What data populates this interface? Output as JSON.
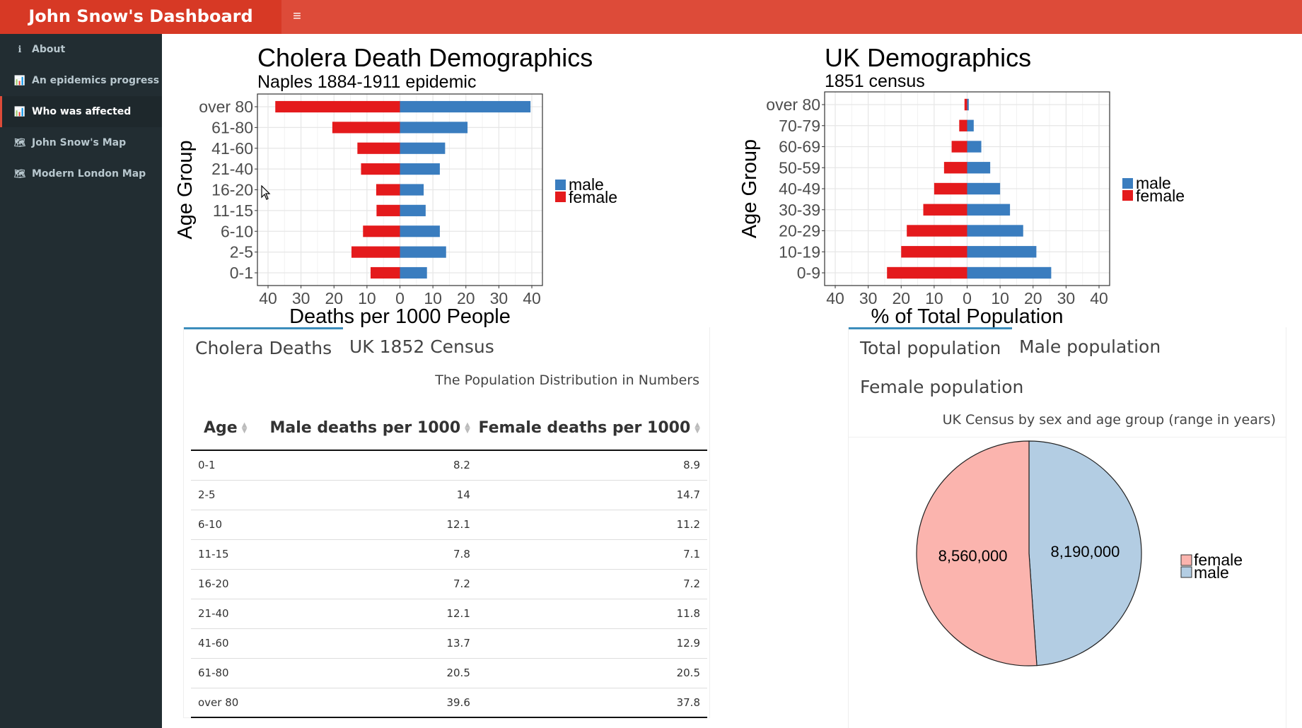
{
  "header": {
    "title": "John Snow's Dashboard",
    "menu_icon": "hamburger-icon"
  },
  "sidebar": {
    "items": [
      {
        "label": "About",
        "icon": "info-icon",
        "glyph": "ℹ",
        "active": false
      },
      {
        "label": "An epidemics progress",
        "icon": "bar-chart-icon",
        "glyph": "📊",
        "active": false
      },
      {
        "label": "Who was affected",
        "icon": "bar-chart-icon",
        "glyph": "📊",
        "active": true
      },
      {
        "label": "John Snow's Map",
        "icon": "map-icon",
        "glyph": "🗺",
        "active": false
      },
      {
        "label": "Modern London Map",
        "icon": "map-icon",
        "glyph": "🗺",
        "active": false
      }
    ]
  },
  "colors": {
    "male": "#3a7dbf",
    "female": "#e41a1c",
    "pie_female": "#fbb4ae",
    "pie_male": "#b3cde3",
    "accent": "#dd4b39",
    "tab_accent": "#3c8dbc"
  },
  "charts": {
    "cholera": {
      "title": "Cholera Death Demographics",
      "subtitle": "Naples 1884-1911 epidemic",
      "xlabel": "Deaths per 1000 People",
      "ylabel": "Age Group",
      "legend": [
        "male",
        "female"
      ],
      "x_ticks": [
        "40",
        "30",
        "20",
        "10",
        "0",
        "10",
        "20",
        "30",
        "40"
      ]
    },
    "uk": {
      "title": "UK Demographics",
      "subtitle": "1851 census",
      "xlabel": "% of Total Population",
      "ylabel": "Age Group",
      "legend": [
        "male",
        "female"
      ],
      "x_ticks": [
        "40",
        "30",
        "20",
        "10",
        "0",
        "10",
        "20",
        "30",
        "40"
      ]
    },
    "pie": {
      "legend": [
        "female",
        "male"
      ],
      "labels": [
        "8,560,000",
        "8,190,000"
      ]
    }
  },
  "chart_data": [
    {
      "type": "bar",
      "orientation": "horizontal",
      "title": "Cholera Death Demographics",
      "subtitle": "Naples 1884-1911 epidemic",
      "xlabel": "Deaths per 1000 People",
      "ylabel": "Age Group",
      "xlim": [
        -40,
        40
      ],
      "categories": [
        "0-1",
        "2-5",
        "6-10",
        "11-15",
        "16-20",
        "21-40",
        "41-60",
        "61-80",
        "over 80"
      ],
      "series": [
        {
          "name": "male",
          "values": [
            8.2,
            14,
            12.1,
            7.8,
            7.2,
            12.1,
            13.7,
            20.5,
            39.6
          ]
        },
        {
          "name": "female",
          "values": [
            8.9,
            14.7,
            11.2,
            7.1,
            7.2,
            11.8,
            12.9,
            20.5,
            37.8
          ]
        }
      ],
      "legend_position": "right",
      "grid": true
    },
    {
      "type": "bar",
      "orientation": "horizontal",
      "title": "UK Demographics",
      "subtitle": "1851 census",
      "xlabel": "% of Total Population",
      "ylabel": "Age Group",
      "xlim": [
        -40,
        40
      ],
      "categories": [
        "0-9",
        "10-19",
        "20-29",
        "30-39",
        "40-49",
        "50-59",
        "60-69",
        "70-79",
        "over 80"
      ],
      "series": [
        {
          "name": "male",
          "values": [
            25.5,
            21,
            17,
            13,
            10,
            7,
            4.3,
            2,
            0.5
          ]
        },
        {
          "name": "female",
          "values": [
            24.3,
            20,
            18.3,
            13.3,
            10,
            7,
            4.7,
            2.4,
            0.8
          ]
        }
      ],
      "legend_position": "right",
      "grid": true
    },
    {
      "type": "pie",
      "categories": [
        "female",
        "male"
      ],
      "values": [
        8560000,
        8190000
      ],
      "labels": [
        "8,560,000",
        "8,190,000"
      ],
      "legend_position": "right"
    }
  ],
  "tabs_left": {
    "items": [
      "Cholera Deaths",
      "UK 1852 Census"
    ],
    "active": 0
  },
  "tabs_right": {
    "items": [
      "Total population",
      "Male population",
      "Female population"
    ],
    "active": 0
  },
  "table": {
    "caption": "The Population Distribution in Numbers",
    "headers": {
      "age": "Age",
      "male": "Male deaths per 1000",
      "female": "Female deaths per 1000"
    },
    "rows": [
      [
        "0-1",
        "8.2",
        "8.9"
      ],
      [
        "2-5",
        "14",
        "14.7"
      ],
      [
        "6-10",
        "12.1",
        "11.2"
      ],
      [
        "11-15",
        "7.8",
        "7.1"
      ],
      [
        "16-20",
        "7.2",
        "7.2"
      ],
      [
        "21-40",
        "12.1",
        "11.8"
      ],
      [
        "41-60",
        "13.7",
        "12.9"
      ],
      [
        "61-80",
        "20.5",
        "20.5"
      ],
      [
        "over 80",
        "39.6",
        "37.8"
      ]
    ]
  },
  "pie_caption": "UK Census by sex and age group (range in years)"
}
